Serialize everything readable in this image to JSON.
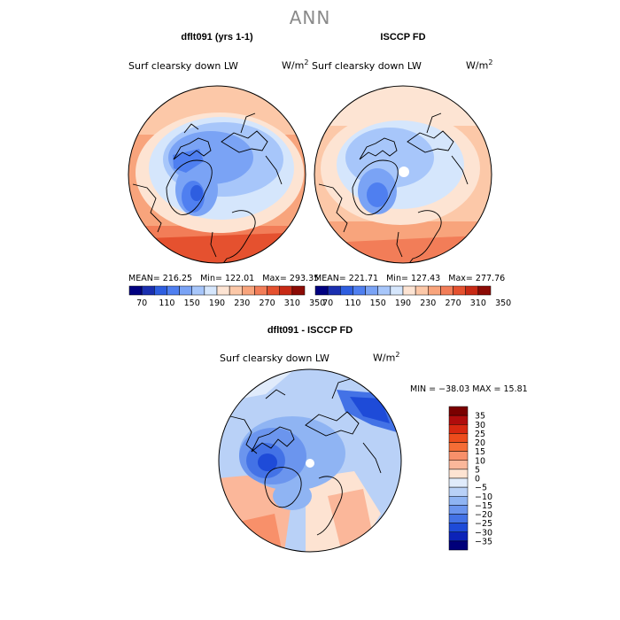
{
  "title": "ANN",
  "panels": [
    {
      "id": "model",
      "title": "dflt091 (yrs 1-1)",
      "variable": "Surf clearsky down LW",
      "units_base": "W/m",
      "units_exp": "2",
      "stats": {
        "mean_label": "MEAN=",
        "mean": "216.25",
        "min_label": "Min=",
        "min": "122.01",
        "max_label": "Max=",
        "max": "293.35"
      }
    },
    {
      "id": "obs",
      "title": "ISCCP FD",
      "variable": "Surf clearsky down LW",
      "units_base": "W/m",
      "units_exp": "2",
      "stats": {
        "mean_label": "MEAN=",
        "mean": "221.71",
        "min_label": "Min=",
        "min": "127.43",
        "max_label": "Max=",
        "max": "277.76"
      }
    },
    {
      "id": "diff",
      "title": "dflt091 - ISCCP FD",
      "variable": "Surf clearsky down LW",
      "units_base": "W/m",
      "units_exp": "2",
      "stats_line": "MIN = −38.03 MAX =  15.81"
    }
  ],
  "colorbar_abs": {
    "colors": [
      "#000080",
      "#1a2fb0",
      "#2e5ee0",
      "#4f7ff0",
      "#7aa3f5",
      "#a7c6fa",
      "#d5e6fc",
      "#fde4d3",
      "#fcc8a8",
      "#f8a47c",
      "#f27d58",
      "#e5512f",
      "#c82a15",
      "#8c0b05"
    ],
    "tick_labels": [
      "70",
      "110",
      "150",
      "190",
      "230",
      "270",
      "310",
      "350"
    ]
  },
  "colorbar_diff": {
    "colors": [
      "#7a0000",
      "#b00c0c",
      "#d82810",
      "#ed4c1c",
      "#f56d36",
      "#f8906a",
      "#fbb79a",
      "#fde3d2",
      "#e0ebfb",
      "#b9d1f7",
      "#8fb4f3",
      "#6b95ee",
      "#4372e6",
      "#1e4bd8",
      "#0c23b8",
      "#00007a"
    ],
    "tick_labels": [
      "35",
      "30",
      "25",
      "20",
      "15",
      "10",
      "5",
      "0",
      "−5",
      "−10",
      "−15",
      "−20",
      "−25",
      "−30",
      "−35"
    ]
  },
  "chart_data": [
    {
      "type": "heatmap",
      "title": "dflt091 (yrs 1-1)",
      "projection": "north polar stereographic",
      "variable": "Surf clearsky down LW",
      "units": "W/m^2",
      "mean": 216.25,
      "min": 122.01,
      "max": 293.35,
      "colorbar_levels": [
        70,
        90,
        110,
        130,
        150,
        170,
        190,
        210,
        230,
        250,
        270,
        290,
        310,
        330,
        350
      ]
    },
    {
      "type": "heatmap",
      "title": "ISCCP FD",
      "projection": "north polar stereographic",
      "variable": "Surf clearsky down LW",
      "units": "W/m^2",
      "mean": 221.71,
      "min": 127.43,
      "max": 277.76,
      "colorbar_levels": [
        70,
        90,
        110,
        130,
        150,
        170,
        190,
        210,
        230,
        250,
        270,
        290,
        310,
        330,
        350
      ]
    },
    {
      "type": "heatmap",
      "title": "dflt091 - ISCCP FD",
      "projection": "north polar stereographic",
      "variable": "Surf clearsky down LW",
      "units": "W/m^2",
      "min": -38.03,
      "max": 15.81,
      "colorbar_levels": [
        35,
        30,
        25,
        20,
        15,
        10,
        5,
        0,
        -5,
        -10,
        -15,
        -20,
        -25,
        -30,
        -35
      ]
    }
  ]
}
